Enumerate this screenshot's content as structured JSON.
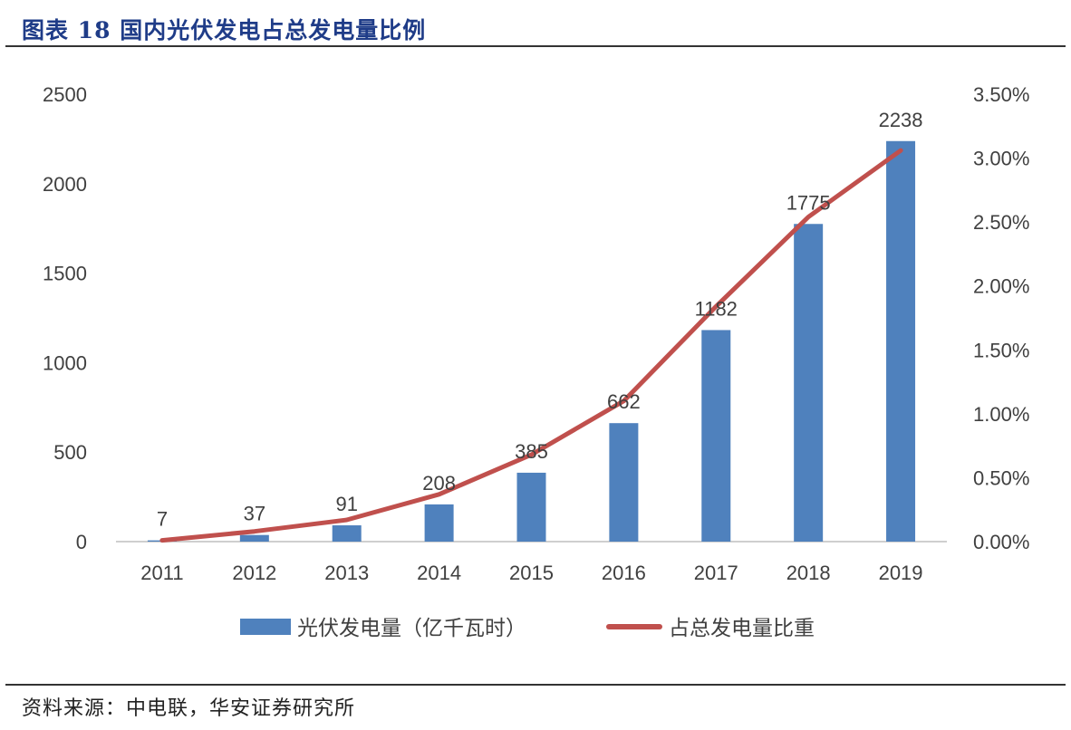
{
  "header": {
    "title": "图表 18 国内光伏发电占总发电量比例"
  },
  "footer": {
    "source": "资料来源：中电联，华安证券研究所"
  },
  "colors": {
    "bar": "#4f81bd",
    "line": "#c0504d",
    "title": "#1f3c88"
  },
  "chart_data": {
    "type": "bar",
    "categories": [
      "2011",
      "2012",
      "2013",
      "2014",
      "2015",
      "2016",
      "2017",
      "2018",
      "2019"
    ],
    "series": [
      {
        "name": "光伏发电量（亿千瓦时）",
        "type": "bar",
        "axis": "left",
        "values": [
          7,
          37,
          91,
          208,
          385,
          662,
          1182,
          1775,
          2238
        ]
      },
      {
        "name": "占总发电量比重",
        "type": "line",
        "axis": "right",
        "values": [
          0.0001,
          0.0008,
          0.0017,
          0.0037,
          0.0068,
          0.011,
          0.0184,
          0.0254,
          0.0306
        ]
      }
    ],
    "data_labels": [
      "7",
      "37",
      "91",
      "208",
      "385",
      "662",
      "1182",
      "1775",
      "2238"
    ],
    "y_left": {
      "ylim": [
        0,
        2500
      ],
      "ticks": [
        "0",
        "500",
        "1000",
        "1500",
        "2000",
        "2500"
      ]
    },
    "y_right": {
      "ylim": [
        0,
        0.035
      ],
      "ticks": [
        "0.00%",
        "0.50%",
        "1.00%",
        "1.50%",
        "2.00%",
        "2.50%",
        "3.00%",
        "3.50%"
      ]
    },
    "grid": false,
    "legend": "bottom"
  }
}
